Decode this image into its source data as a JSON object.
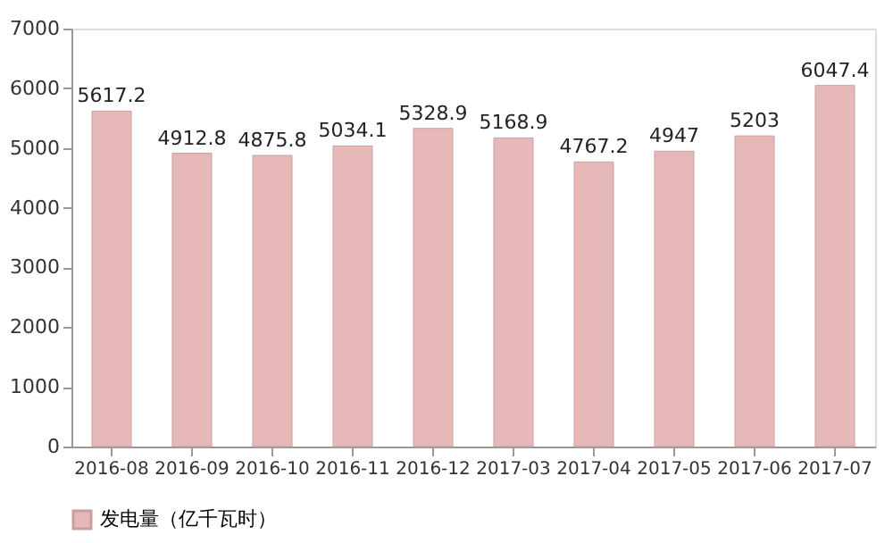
{
  "chart_data": {
    "type": "bar",
    "categories": [
      "2016-08",
      "2016-09",
      "2016-10",
      "2016-11",
      "2016-12",
      "2017-03",
      "2017-04",
      "2017-05",
      "2017-06",
      "2017-07"
    ],
    "series": [
      {
        "name": "发电量（亿千瓦时）",
        "color": "#e6b9b8",
        "values": [
          5617.2,
          4912.8,
          4875.8,
          5034.1,
          5328.9,
          5168.9,
          4767.2,
          4947,
          5203,
          6047.4
        ]
      }
    ],
    "ylim": [
      0,
      7000
    ],
    "yticks": [
      0,
      1000,
      2000,
      3000,
      4000,
      5000,
      6000,
      7000
    ],
    "grid": false,
    "legend": "bottom",
    "data_labels": true
  }
}
